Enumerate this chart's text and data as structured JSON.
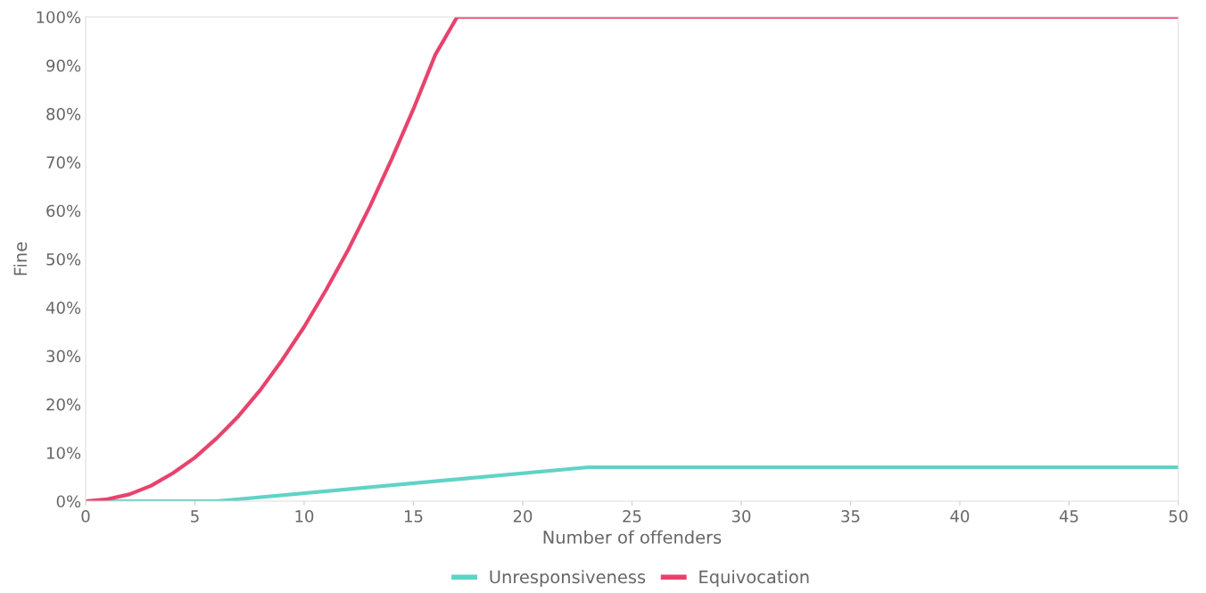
{
  "chart_data": {
    "type": "line",
    "xlabel": "Number of offenders",
    "ylabel": "Fine",
    "xlim": [
      0,
      50
    ],
    "xticks": [
      0,
      5,
      10,
      15,
      20,
      25,
      30,
      35,
      40,
      45,
      50
    ],
    "ylim": [
      0,
      100
    ],
    "yticks": [
      {
        "value": 0,
        "label": "0%"
      },
      {
        "value": 10,
        "label": "10%"
      },
      {
        "value": 20,
        "label": "20%"
      },
      {
        "value": 30,
        "label": "30%"
      },
      {
        "value": 40,
        "label": "40%"
      },
      {
        "value": 50,
        "label": "50%"
      },
      {
        "value": 60,
        "label": "60%"
      },
      {
        "value": 70,
        "label": "70%"
      },
      {
        "value": 80,
        "label": "80%"
      },
      {
        "value": 90,
        "label": "90%"
      },
      {
        "value": 100,
        "label": "100%"
      }
    ],
    "grid": false,
    "legend": "bottom",
    "marker": "none",
    "line_style": "solid",
    "series": [
      {
        "name": "Unresponsiveness",
        "color": "#5fd3c7",
        "x": [
          0,
          6,
          23,
          50
        ],
        "values": [
          0,
          0,
          7,
          7
        ]
      },
      {
        "name": "Equivocation",
        "color": "#e8436d",
        "x": [
          0,
          1,
          2,
          3,
          4,
          5,
          6,
          7,
          8,
          9,
          10,
          11,
          12,
          13,
          14,
          15,
          16,
          17,
          50
        ],
        "values": [
          0,
          0.4,
          1.4,
          3.2,
          5.8,
          9,
          13,
          17.6,
          23,
          29.2,
          36,
          43.6,
          51.8,
          60.8,
          70.6,
          81,
          92.2,
          100,
          100
        ]
      }
    ]
  }
}
